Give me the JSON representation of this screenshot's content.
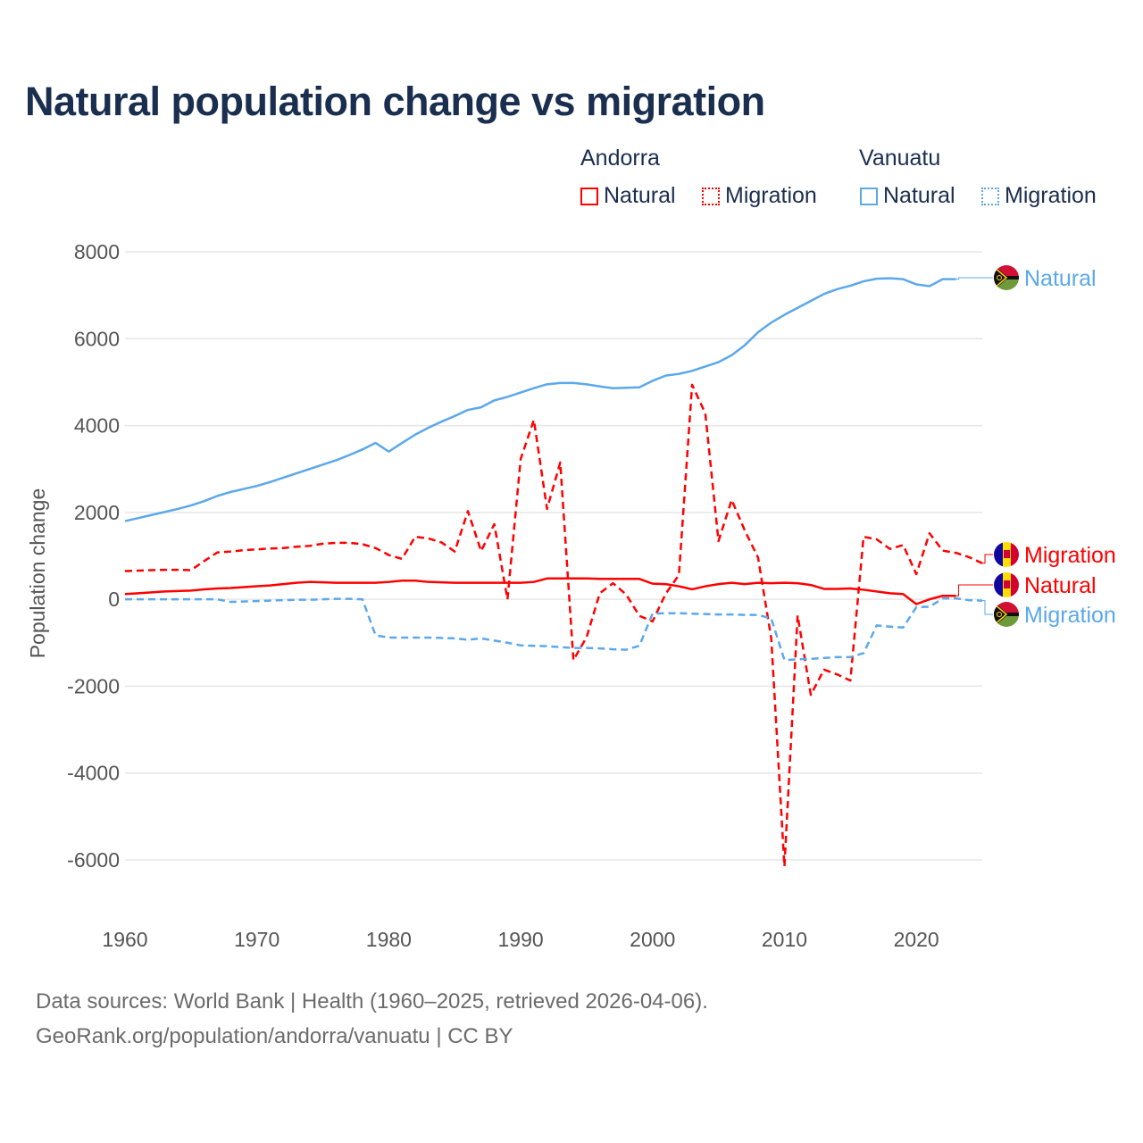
{
  "title": "Natural population change vs migration",
  "legend": {
    "groups": [
      {
        "name": "Andorra",
        "color": "#ff0000",
        "items": [
          "Natural",
          "Migration"
        ]
      },
      {
        "name": "Vanuatu",
        "color": "#5ba8ea",
        "items": [
          "Natural",
          "Migration"
        ]
      }
    ]
  },
  "footer": {
    "line1": "Data sources: World Bank | Health (1960–2025, retrieved 2026-04-06).",
    "line2": "GeoRank.org/population/andorra/vanuatu | CC BY"
  },
  "chart_data": {
    "type": "line",
    "title": "Natural population change vs migration",
    "xlabel": "",
    "ylabel": "Population change",
    "xlim": [
      1960,
      2025
    ],
    "ylim": [
      -6000,
      8000
    ],
    "xticks": [
      1960,
      1970,
      1980,
      1990,
      2000,
      2010,
      2020
    ],
    "yticks": [
      -6000,
      -4000,
      -2000,
      0,
      2000,
      4000,
      6000,
      8000
    ],
    "grid": true,
    "legend_position": "top-right",
    "series": [
      {
        "name": "Vanuatu Natural",
        "end_label": "Natural",
        "country": "Vanuatu",
        "color": "#5ba8ea",
        "dash": false,
        "x_start": 1960,
        "values": [
          1800,
          1870,
          1940,
          2010,
          2080,
          2160,
          2260,
          2380,
          2470,
          2540,
          2610,
          2700,
          2800,
          2900,
          3000,
          3100,
          3200,
          3320,
          3450,
          3600,
          3400,
          3600,
          3790,
          3950,
          4090,
          4220,
          4360,
          4420,
          4580,
          4660,
          4760,
          4860,
          4950,
          4980,
          4980,
          4950,
          4900,
          4860,
          4870,
          4880,
          5030,
          5150,
          5190,
          5260,
          5360,
          5460,
          5620,
          5850,
          6150,
          6370,
          6550,
          6710,
          6870,
          7030,
          7140,
          7220,
          7320,
          7380,
          7390,
          7370,
          7250,
          7210,
          7370,
          7370
        ]
      },
      {
        "name": "Andorra Migration",
        "end_label": "Migration",
        "country": "Andorra",
        "color": "#ff0000",
        "dash": true,
        "x_start": 1960,
        "values": [
          650,
          660,
          670,
          680,
          680,
          670,
          880,
          1080,
          1100,
          1130,
          1150,
          1170,
          1180,
          1210,
          1230,
          1280,
          1300,
          1300,
          1270,
          1180,
          1020,
          930,
          1440,
          1400,
          1310,
          1100,
          2030,
          1110,
          1730,
          0,
          3230,
          4130,
          2080,
          3150,
          -1400,
          -870,
          140,
          370,
          110,
          -380,
          -510,
          130,
          560,
          4940,
          4280,
          1340,
          2290,
          1580,
          960,
          -900,
          -6150,
          -370,
          -2200,
          -1620,
          -1730,
          -1870,
          1440,
          1380,
          1160,
          1250,
          580,
          1520,
          1120,
          1070,
          970,
          830
        ]
      },
      {
        "name": "Andorra Natural",
        "end_label": "Natural",
        "country": "Andorra",
        "color": "#ff0000",
        "dash": false,
        "x_start": 1960,
        "values": [
          120,
          140,
          160,
          180,
          190,
          200,
          230,
          250,
          260,
          280,
          300,
          320,
          350,
          380,
          400,
          390,
          380,
          380,
          380,
          380,
          400,
          430,
          430,
          400,
          390,
          380,
          380,
          380,
          380,
          380,
          380,
          400,
          480,
          480,
          480,
          480,
          470,
          470,
          470,
          470,
          360,
          350,
          300,
          230,
          300,
          350,
          380,
          350,
          380,
          370,
          380,
          370,
          330,
          240,
          240,
          250,
          220,
          180,
          140,
          120,
          -110,
          0,
          80,
          80
        ]
      },
      {
        "name": "Vanuatu Migration",
        "end_label": "Migration",
        "country": "Vanuatu",
        "color": "#5ba8ea",
        "dash": true,
        "x_start": 1960,
        "values": [
          0,
          0,
          0,
          0,
          0,
          0,
          0,
          0,
          -60,
          -50,
          -40,
          -30,
          -20,
          -10,
          -10,
          0,
          10,
          10,
          0,
          -830,
          -880,
          -880,
          -880,
          -880,
          -890,
          -900,
          -930,
          -900,
          -950,
          -1000,
          -1060,
          -1070,
          -1080,
          -1100,
          -1120,
          -1120,
          -1130,
          -1150,
          -1160,
          -1070,
          -330,
          -320,
          -320,
          -330,
          -340,
          -350,
          -350,
          -360,
          -360,
          -440,
          -1400,
          -1380,
          -1370,
          -1350,
          -1330,
          -1330,
          -1240,
          -600,
          -630,
          -650,
          -180,
          -170,
          20,
          20,
          -20,
          -30
        ]
      }
    ]
  }
}
